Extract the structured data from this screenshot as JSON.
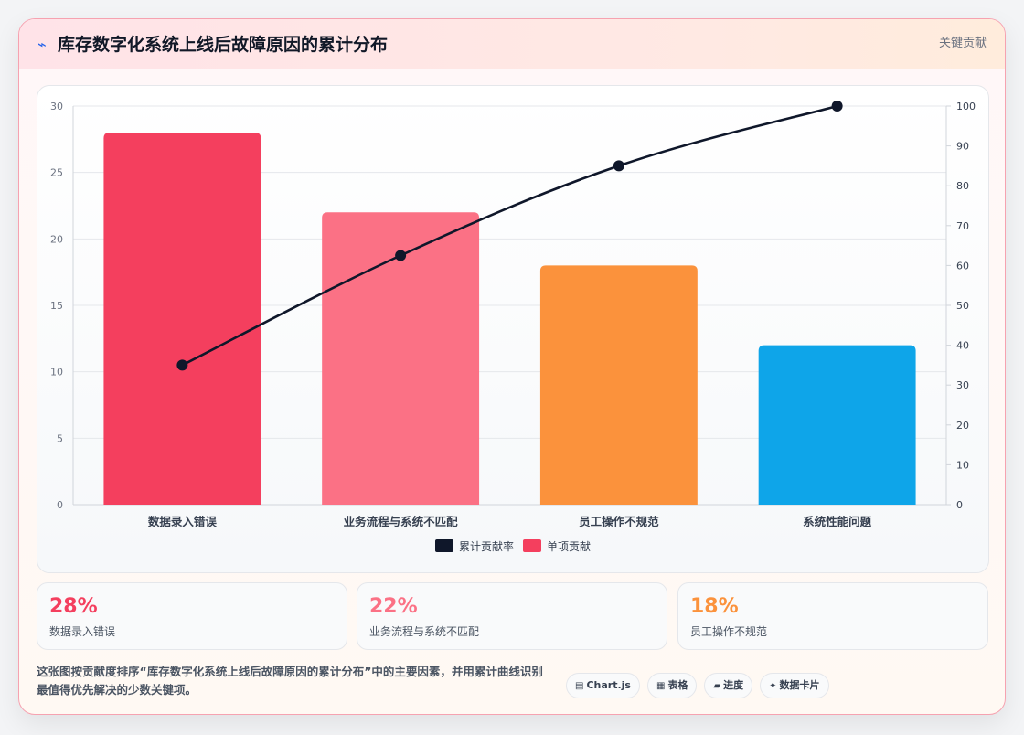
{
  "header": {
    "icon": "trend-icon",
    "title": "库存数字化系统上线后故障原因的累计分布",
    "badge": "关键贡献"
  },
  "chart_data": {
    "type": "bar",
    "categories": [
      "数据录入错误",
      "业务流程与系统不匹配",
      "员工操作不规范",
      "系统性能问题"
    ],
    "series": [
      {
        "name": "单项贡献",
        "type": "bar",
        "axis": "left",
        "values": [
          28,
          22,
          18,
          12
        ],
        "colors": [
          "#f43f5e",
          "#fb7185",
          "#fb923c",
          "#0ea5e9"
        ]
      },
      {
        "name": "累计贡献率",
        "type": "line",
        "axis": "right",
        "values": [
          35,
          62.5,
          85,
          100
        ],
        "color": "#0f172a"
      }
    ],
    "y_left": {
      "min": 0,
      "max": 30,
      "ticks": [
        "0",
        "5",
        "10",
        "15",
        "20",
        "25",
        "30"
      ]
    },
    "y_right": {
      "min": 0,
      "max": 100,
      "ticks": [
        "0",
        "10",
        "20",
        "30",
        "40",
        "50",
        "60",
        "70",
        "80",
        "90",
        "100"
      ]
    },
    "grid": true,
    "legend": {
      "position": "bottom",
      "order": [
        "累计贡献率",
        "单项贡献"
      ]
    }
  },
  "stats": [
    {
      "value": "28%",
      "label": "数据录入错误",
      "color": "#f43f5e"
    },
    {
      "value": "22%",
      "label": "业务流程与系统不匹配",
      "color": "#fb7185"
    },
    {
      "value": "18%",
      "label": "员工操作不规范",
      "color": "#fb923c"
    }
  ],
  "footer": {
    "description": "这张图按贡献度排序“库存数字化系统上线后故障原因的累计分布”中的主要因素，并用累计曲线识别最值得优先解决的少数关键项。",
    "chips": [
      {
        "icon": "chart-icon",
        "glyph": "▤",
        "label": "Chart.js"
      },
      {
        "icon": "table-icon",
        "glyph": "▦",
        "label": "表格"
      },
      {
        "icon": "progress-icon",
        "glyph": "▰",
        "label": "进度"
      },
      {
        "icon": "card-icon",
        "glyph": "✦",
        "label": "数据卡片"
      }
    ]
  }
}
